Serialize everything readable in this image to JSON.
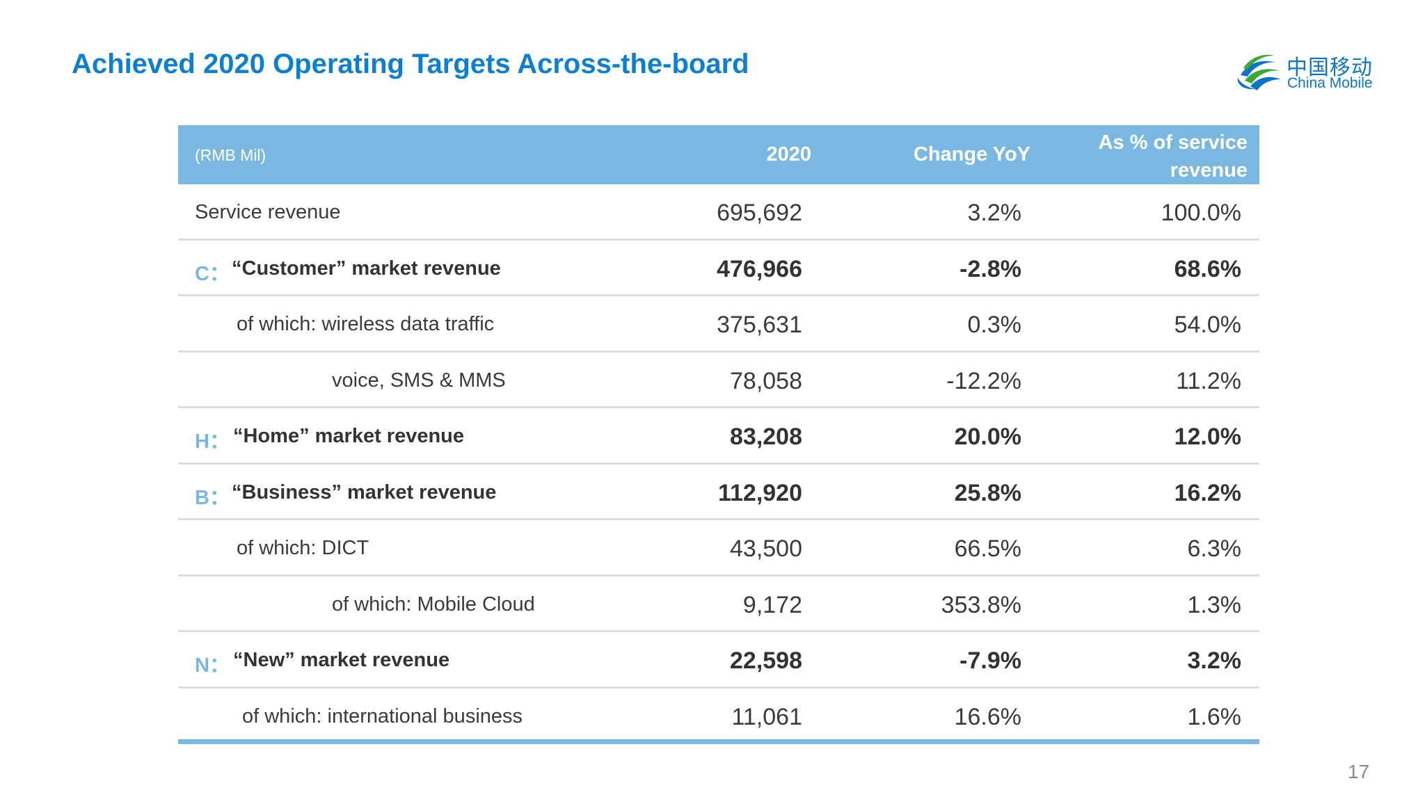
{
  "title": "Achieved 2020 Operating Targets Across-the-board",
  "logo": {
    "cn": "中国移动",
    "en": "China Mobile"
  },
  "table": {
    "header": {
      "unit": "(RMB Mil)",
      "col1": "2020",
      "col2": "Change YoY",
      "col3": "As % of service revenue"
    },
    "rows": [
      {
        "prefix": "",
        "label": "Service revenue",
        "v1": "695,692",
        "v2": "3.2%",
        "v3": "100.0%"
      },
      {
        "prefix": "C：",
        "label": "“Customer” market revenue",
        "v1": "476,966",
        "v2": "-2.8%",
        "v3": "68.6%"
      },
      {
        "prefix": "",
        "label": "of which: wireless data traffic",
        "v1": "375,631",
        "v2": "0.3%",
        "v3": "54.0%"
      },
      {
        "prefix": "",
        "label": "voice, SMS & MMS",
        "v1": "78,058",
        "v2": "-12.2%",
        "v3": "11.2%"
      },
      {
        "prefix": "H：",
        "label": "“Home” market revenue",
        "v1": "83,208",
        "v2": "20.0%",
        "v3": "12.0%"
      },
      {
        "prefix": "B：",
        "label": "“Business” market revenue",
        "v1": "112,920",
        "v2": "25.8%",
        "v3": "16.2%"
      },
      {
        "prefix": "",
        "label": "of which: DICT",
        "v1": "43,500",
        "v2": "66.5%",
        "v3": "6.3%"
      },
      {
        "prefix": "",
        "label": "of which:  Mobile Cloud",
        "v1": "9,172",
        "v2": "353.8%",
        "v3": "1.3%"
      },
      {
        "prefix": "N：",
        "label": "“New” market revenue",
        "v1": "22,598",
        "v2": "-7.9%",
        "v3": "3.2%"
      },
      {
        "prefix": "",
        "label": "of which: international business",
        "v1": "11,061",
        "v2": "16.6%",
        "v3": "1.6%"
      }
    ]
  },
  "page_number": "17",
  "colors": {
    "title": "#0b7fd1",
    "header_bg": "#7ab8e2",
    "prefix": "#7ab8e2"
  }
}
